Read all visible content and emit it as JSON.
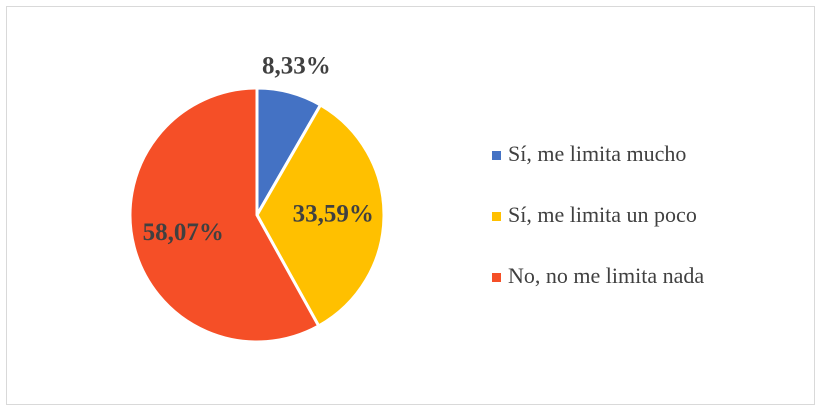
{
  "chart_data": {
    "type": "pie",
    "categories": [
      "Sí, me limita mucho",
      "Sí, me limita un poco",
      "No, no me limita nada"
    ],
    "values": [
      8.33,
      33.59,
      58.07
    ],
    "value_labels": [
      "8,33%",
      "33,59%",
      "58,07%"
    ],
    "colors": [
      "#4472c4",
      "#ffc000",
      "#f54f27"
    ],
    "legend": "right"
  }
}
